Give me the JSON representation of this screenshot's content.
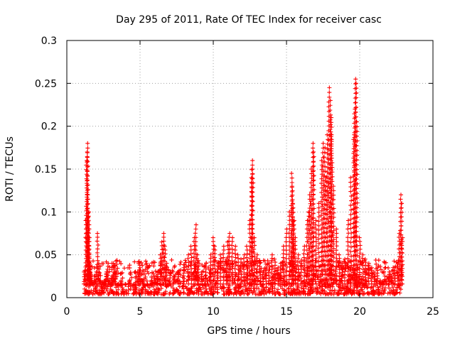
{
  "chart_data": {
    "type": "scatter",
    "title": "Day 295 of 2011, Rate Of TEC Index for receiver casc",
    "xlabel": "GPS time / hours",
    "ylabel": "ROTI / TECUs",
    "xlim": [
      0,
      25
    ],
    "ylim": [
      0,
      0.3
    ],
    "xticks": [
      0,
      5,
      10,
      15,
      20,
      25
    ],
    "xtick_labels": [
      "0",
      "5",
      "10",
      "15",
      "20",
      "25"
    ],
    "yticks": [
      0,
      0.05,
      0.1,
      0.15,
      0.2,
      0.25,
      0.3
    ],
    "ytick_labels": [
      "0",
      "0.05",
      "0.1",
      "0.15",
      "0.2",
      "0.25",
      "0.3"
    ],
    "grid": true,
    "marker": "+",
    "color": "#ff0000",
    "series": [
      {
        "x": [
          1.2,
          1.3,
          1.35,
          1.4,
          1.42,
          1.45,
          1.48,
          1.5,
          1.52,
          1.55,
          1.58,
          1.6,
          1.65,
          1.7,
          1.8,
          1.9,
          2.0,
          2.1,
          2.2,
          2.3,
          2.4,
          2.5,
          2.6,
          2.7,
          2.8,
          2.9,
          3.0,
          3.1,
          3.2,
          3.3,
          3.5,
          3.7,
          4.0,
          4.3,
          4.6,
          4.9,
          5.0,
          5.2,
          5.5,
          5.8,
          6.0,
          6.2,
          6.4,
          6.5,
          6.6,
          6.7,
          6.8,
          7.0,
          7.3,
          7.6,
          8.0,
          8.3,
          8.5,
          8.7,
          8.8,
          8.9,
          9.0,
          9.2,
          9.5,
          9.8,
          10.0,
          10.1,
          10.3,
          10.5,
          10.7,
          10.9,
          11.0,
          11.1,
          11.3,
          11.5,
          11.7,
          11.9,
          12.1,
          12.3,
          12.5,
          12.6,
          12.65,
          12.7,
          12.8,
          13.0,
          13.2,
          13.4,
          13.6,
          13.8,
          14.0,
          14.2,
          14.4,
          14.6,
          14.8,
          15.0,
          15.2,
          15.35,
          15.4,
          15.45,
          15.5,
          15.6,
          15.8,
          16.0,
          16.2,
          16.4,
          16.5,
          16.6,
          16.7,
          16.8,
          16.85,
          17.0,
          17.2,
          17.4,
          17.5,
          17.6,
          17.7,
          17.8,
          17.9,
          18.0,
          18.05,
          18.1,
          18.2,
          18.4,
          18.6,
          18.8,
          19.0,
          19.2,
          19.4,
          19.6,
          19.65,
          19.7,
          19.75,
          19.8,
          20.0,
          20.2,
          20.4,
          20.6,
          20.8,
          21.0,
          21.2,
          21.4,
          21.6,
          21.8,
          22.0,
          22.2,
          22.4,
          22.6,
          22.7,
          22.8,
          22.85,
          22.9
        ],
        "y": [
          0.03,
          0.09,
          0.16,
          0.18,
          0.17,
          0.12,
          0.1,
          0.085,
          0.07,
          0.05,
          0.04,
          0.03,
          0.025,
          0.02,
          0.015,
          0.02,
          0.03,
          0.075,
          0.04,
          0.02,
          0.01,
          0.015,
          0.02,
          0.03,
          0.04,
          0.02,
          0.015,
          0.025,
          0.04,
          0.03,
          0.015,
          0.02,
          0.015,
          0.02,
          0.015,
          0.03,
          0.035,
          0.02,
          0.015,
          0.02,
          0.025,
          0.03,
          0.05,
          0.065,
          0.075,
          0.06,
          0.04,
          0.02,
          0.025,
          0.03,
          0.035,
          0.05,
          0.06,
          0.07,
          0.085,
          0.05,
          0.04,
          0.03,
          0.04,
          0.05,
          0.07,
          0.06,
          0.04,
          0.05,
          0.06,
          0.045,
          0.065,
          0.075,
          0.07,
          0.06,
          0.05,
          0.045,
          0.05,
          0.06,
          0.09,
          0.14,
          0.16,
          0.15,
          0.07,
          0.05,
          0.04,
          0.03,
          0.035,
          0.04,
          0.05,
          0.045,
          0.035,
          0.04,
          0.06,
          0.08,
          0.1,
          0.145,
          0.13,
          0.11,
          0.09,
          0.07,
          0.05,
          0.04,
          0.06,
          0.09,
          0.1,
          0.12,
          0.15,
          0.18,
          0.17,
          0.09,
          0.11,
          0.16,
          0.18,
          0.175,
          0.14,
          0.19,
          0.245,
          0.23,
          0.21,
          0.19,
          0.13,
          0.08,
          0.05,
          0.04,
          0.045,
          0.09,
          0.14,
          0.19,
          0.22,
          0.255,
          0.25,
          0.205,
          0.07,
          0.05,
          0.045,
          0.04,
          0.035,
          0.03,
          0.035,
          0.02,
          0.015,
          0.02,
          0.03,
          0.025,
          0.035,
          0.04,
          0.075,
          0.12,
          0.11,
          0.07
        ]
      }
    ],
    "noise_floor_range": [
      0,
      0.04
    ]
  }
}
